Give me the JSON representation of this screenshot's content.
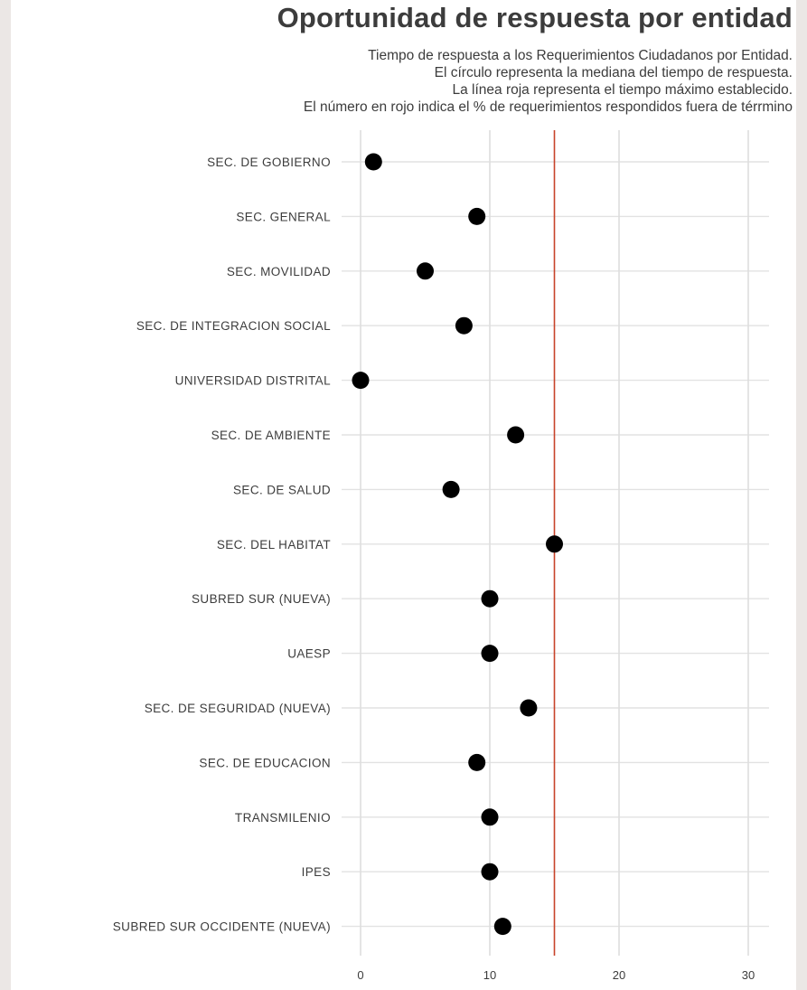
{
  "chart_data": {
    "type": "scatter",
    "title": "Oportunidad de respuesta por entidad",
    "subtitle": [
      "Tiempo de respuesta a los Requerimientos Ciudadanos por Entidad.",
      "El círculo representa la mediana del tiempo de respuesta.",
      "La línea roja representa el tiempo máximo establecido.",
      "El número en rojo indica el % de requerimientos respondidos fuera de térrmino"
    ],
    "xlim": [
      -0.6,
      31.6
    ],
    "x_ticks": [
      0,
      10,
      20,
      30
    ],
    "reference_line": {
      "x": 15,
      "color": "#c8432a"
    },
    "grid": true,
    "point_color": "#000000",
    "categories": [
      "SEC. DE GOBIERNO",
      "SEC. GENERAL",
      "SEC. MOVILIDAD",
      "SEC. DE INTEGRACION SOCIAL",
      "UNIVERSIDAD DISTRITAL",
      "SEC. DE AMBIENTE",
      "SEC. DE SALUD",
      "SEC. DEL HABITAT",
      "SUBRED SUR (NUEVA)",
      "UAESP",
      "SEC. DE SEGURIDAD (NUEVA)",
      "SEC. DE EDUCACION",
      "TRANSMILENIO",
      "IPES",
      "SUBRED SUR OCCIDENTE (NUEVA)"
    ],
    "values": [
      1,
      9,
      5,
      8,
      0,
      12,
      7,
      15,
      10,
      10,
      13,
      9,
      10,
      10,
      11
    ]
  }
}
